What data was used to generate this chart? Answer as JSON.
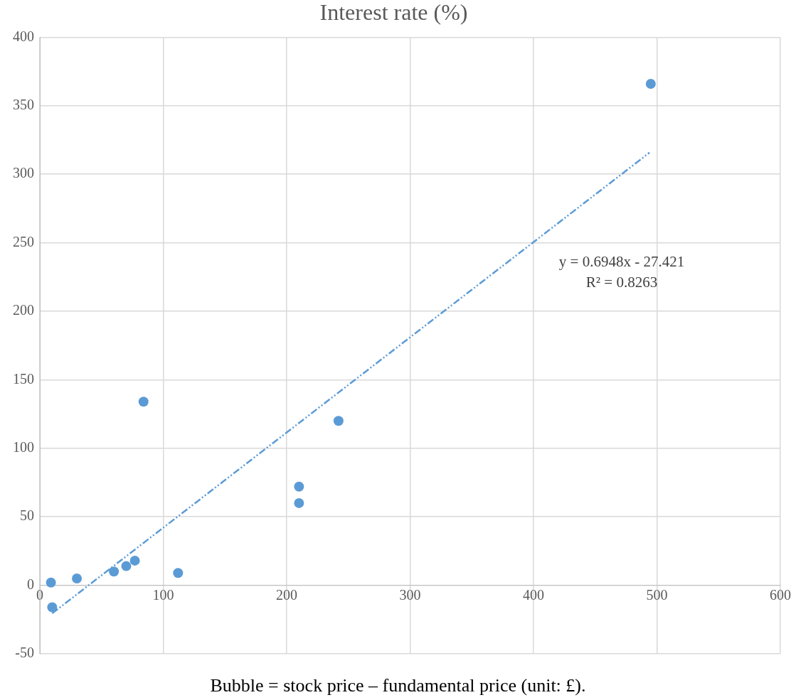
{
  "chart_data": {
    "type": "scatter",
    "title": "Interest rate (%)",
    "xlabel": "Bubble = stock price – fundamental price (unit: £).",
    "x": [
      9,
      10,
      30,
      60,
      70,
      77,
      84,
      112,
      210,
      210,
      242,
      495
    ],
    "series": [
      {
        "color": "#5b9bd5",
        "marker": "circle",
        "values": [
          2,
          -16,
          5,
          10,
          14,
          18,
          134,
          9,
          72,
          60,
          120,
          366
        ]
      },
      {
        "type": "line",
        "color": "#5b9bd5",
        "marker": "none",
        "line_style": "dashed",
        "x": [
          10,
          494
        ],
        "values": [
          -20.5,
          315.8
        ]
      }
    ],
    "annotations": [
      "y = 0.6948x - 27.421",
      "R² = 0.8263"
    ],
    "xlim": [
      0,
      600
    ],
    "xticks": [
      0,
      100,
      200,
      300,
      400,
      500,
      600
    ],
    "ylim": [
      -50,
      400
    ],
    "yticks": [
      -50,
      0,
      50,
      100,
      150,
      200,
      250,
      300,
      350,
      400
    ],
    "grid": true,
    "legend": false
  }
}
